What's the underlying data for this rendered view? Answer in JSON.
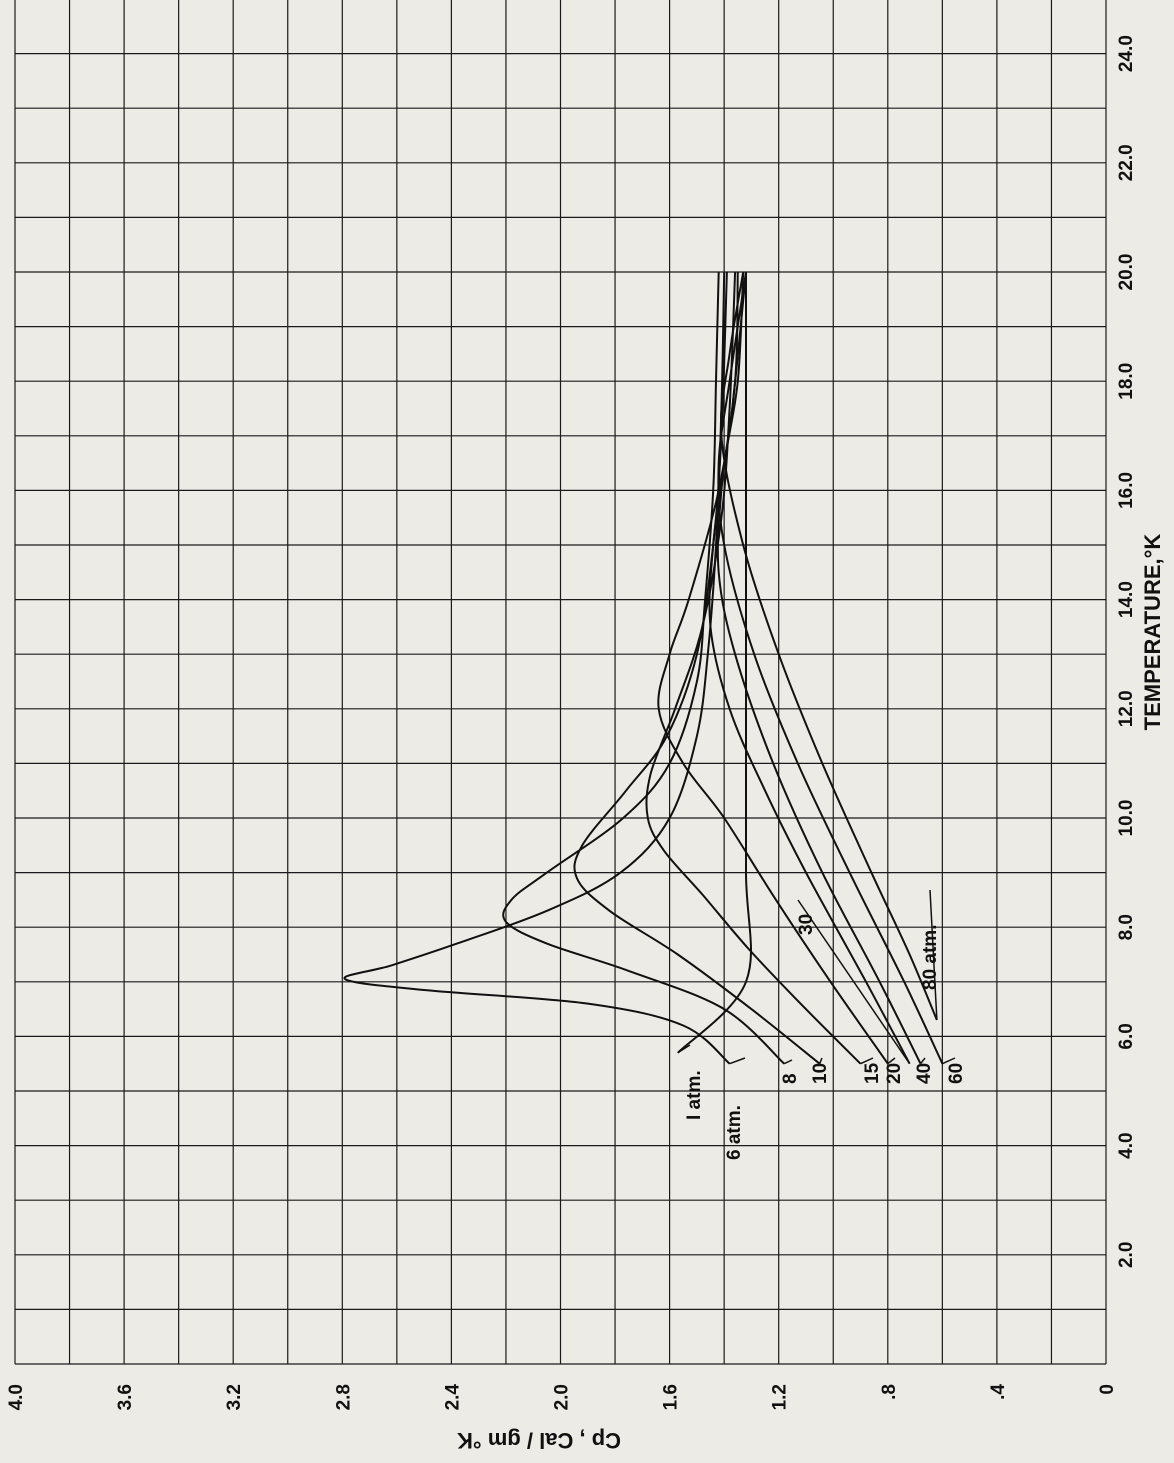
{
  "chart_data": {
    "type": "line",
    "title": "",
    "xlabel": "TEMPERATURE,°K",
    "ylabel": "Cp , Cal / gm °K",
    "xlim": [
      0,
      25
    ],
    "ylim": [
      0,
      4.0
    ],
    "x_ticks": [
      {
        "value": 2,
        "label": "2.0"
      },
      {
        "value": 4,
        "label": "4.0"
      },
      {
        "value": 6,
        "label": "6.0"
      },
      {
        "value": 8,
        "label": "8.0"
      },
      {
        "value": 10,
        "label": "10.0"
      },
      {
        "value": 12,
        "label": "12.0"
      },
      {
        "value": 14,
        "label": "14.0"
      },
      {
        "value": 16,
        "label": "16.0"
      },
      {
        "value": 18,
        "label": "18.0"
      },
      {
        "value": 20,
        "label": "20.0"
      },
      {
        "value": 22,
        "label": "22.0"
      },
      {
        "value": 24,
        "label": "24.0"
      }
    ],
    "y_ticks": [
      {
        "value": 0,
        "label": "0"
      },
      {
        "value": 0.4,
        "label": ".4"
      },
      {
        "value": 0.8,
        "label": ".8"
      },
      {
        "value": 1.2,
        "label": "1.2"
      },
      {
        "value": 1.6,
        "label": "1.6"
      },
      {
        "value": 2.0,
        "label": "2.0"
      },
      {
        "value": 2.4,
        "label": "2.4"
      },
      {
        "value": 2.8,
        "label": "2.8"
      },
      {
        "value": 3.2,
        "label": "3.2"
      },
      {
        "value": 3.6,
        "label": "3.6"
      },
      {
        "value": 4.0,
        "label": "4.0"
      }
    ],
    "grid": true,
    "series": [
      {
        "name": "I atm.",
        "points": [
          [
            5.7,
            1.57
          ],
          [
            7,
            1.32
          ],
          [
            9,
            1.32
          ],
          [
            12,
            1.32
          ],
          [
            15,
            1.32
          ],
          [
            18,
            1.32
          ],
          [
            20,
            1.32
          ]
        ]
      },
      {
        "name": "6 atm.",
        "points": [
          [
            5.5,
            1.38
          ],
          [
            6.2,
            1.55
          ],
          [
            6.6,
            1.9
          ],
          [
            6.85,
            2.5
          ],
          [
            7.05,
            2.79
          ],
          [
            7.3,
            2.62
          ],
          [
            7.7,
            2.38
          ],
          [
            8.3,
            2.05
          ],
          [
            9,
            1.78
          ],
          [
            10,
            1.6
          ],
          [
            11.5,
            1.5
          ],
          [
            13,
            1.46
          ],
          [
            15,
            1.43
          ],
          [
            17.5,
            1.41
          ],
          [
            20,
            1.4
          ]
        ]
      },
      {
        "name": "8",
        "points": [
          [
            5.5,
            1.18
          ],
          [
            6.5,
            1.4
          ],
          [
            7.2,
            1.75
          ],
          [
            7.7,
            2.05
          ],
          [
            8.1,
            2.2
          ],
          [
            8.5,
            2.18
          ],
          [
            9,
            2.05
          ],
          [
            10,
            1.77
          ],
          [
            11,
            1.6
          ],
          [
            12.5,
            1.5
          ],
          [
            14,
            1.47
          ],
          [
            16,
            1.44
          ],
          [
            18,
            1.43
          ],
          [
            20,
            1.42
          ]
        ]
      },
      {
        "name": "10",
        "points": [
          [
            5.5,
            1.05
          ],
          [
            6.5,
            1.3
          ],
          [
            7.5,
            1.57
          ],
          [
            8.3,
            1.82
          ],
          [
            8.9,
            1.94
          ],
          [
            9.5,
            1.92
          ],
          [
            10.5,
            1.76
          ],
          [
            11.5,
            1.61
          ],
          [
            13,
            1.5
          ],
          [
            15,
            1.44
          ],
          [
            17,
            1.41
          ],
          [
            20,
            1.39
          ]
        ]
      },
      {
        "name": "15",
        "points": [
          [
            5.5,
            0.9
          ],
          [
            6.6,
            1.12
          ],
          [
            7.6,
            1.31
          ],
          [
            8.6,
            1.48
          ],
          [
            9.4,
            1.62
          ],
          [
            10,
            1.68
          ],
          [
            10.8,
            1.67
          ],
          [
            12,
            1.58
          ],
          [
            13.5,
            1.48
          ],
          [
            15.5,
            1.41
          ],
          [
            17.5,
            1.38
          ],
          [
            20,
            1.36
          ]
        ]
      },
      {
        "name": "20",
        "points": [
          [
            5.5,
            0.8
          ],
          [
            7,
            1.01
          ],
          [
            8.5,
            1.21
          ],
          [
            10,
            1.4
          ],
          [
            11,
            1.55
          ],
          [
            12,
            1.64
          ],
          [
            13,
            1.6
          ],
          [
            14,
            1.53
          ],
          [
            16,
            1.42
          ],
          [
            18,
            1.36
          ],
          [
            20,
            1.35
          ]
        ]
      },
      {
        "name": "30",
        "points": [
          [
            5.5,
            0.72
          ],
          [
            7,
            0.88
          ],
          [
            9,
            1.1
          ],
          [
            10.5,
            1.25
          ],
          [
            12,
            1.38
          ],
          [
            13.5,
            1.45
          ],
          [
            15,
            1.44
          ],
          [
            16.5,
            1.4
          ],
          [
            18,
            1.35
          ],
          [
            20,
            1.33
          ]
        ]
      },
      {
        "name": "40",
        "points": [
          [
            5.5,
            0.68
          ],
          [
            7,
            0.83
          ],
          [
            9,
            1.04
          ],
          [
            11,
            1.22
          ],
          [
            13,
            1.36
          ],
          [
            14.5,
            1.42
          ],
          [
            16,
            1.41
          ],
          [
            17.5,
            1.37
          ],
          [
            20,
            1.32
          ]
        ]
      },
      {
        "name": "60",
        "points": [
          [
            5.5,
            0.6
          ],
          [
            7,
            0.74
          ],
          [
            9,
            0.94
          ],
          [
            11,
            1.13
          ],
          [
            13,
            1.29
          ],
          [
            15,
            1.4
          ],
          [
            16.5,
            1.42
          ],
          [
            18,
            1.38
          ],
          [
            20,
            1.32
          ]
        ]
      },
      {
        "name": "80 atm.",
        "points": [
          [
            6.3,
            0.62
          ],
          [
            7.5,
            0.72
          ],
          [
            9,
            0.86
          ],
          [
            11,
            1.04
          ],
          [
            13,
            1.2
          ],
          [
            15,
            1.33
          ],
          [
            17,
            1.41
          ],
          [
            18.5,
            1.38
          ],
          [
            20,
            1.33
          ]
        ]
      }
    ],
    "labels": [
      {
        "text": "I atm.",
        "series": "I atm."
      },
      {
        "text": "6 atm.",
        "series": "6 atm."
      },
      {
        "text": "8",
        "series": "8"
      },
      {
        "text": "10",
        "series": "10"
      },
      {
        "text": "15",
        "series": "15"
      },
      {
        "text": "20",
        "series": "20"
      },
      {
        "text": "30",
        "series": "30"
      },
      {
        "text": "40",
        "series": "40"
      },
      {
        "text": "60",
        "series": "60"
      },
      {
        "text": "80 atm.",
        "series": "80 atm."
      }
    ]
  }
}
